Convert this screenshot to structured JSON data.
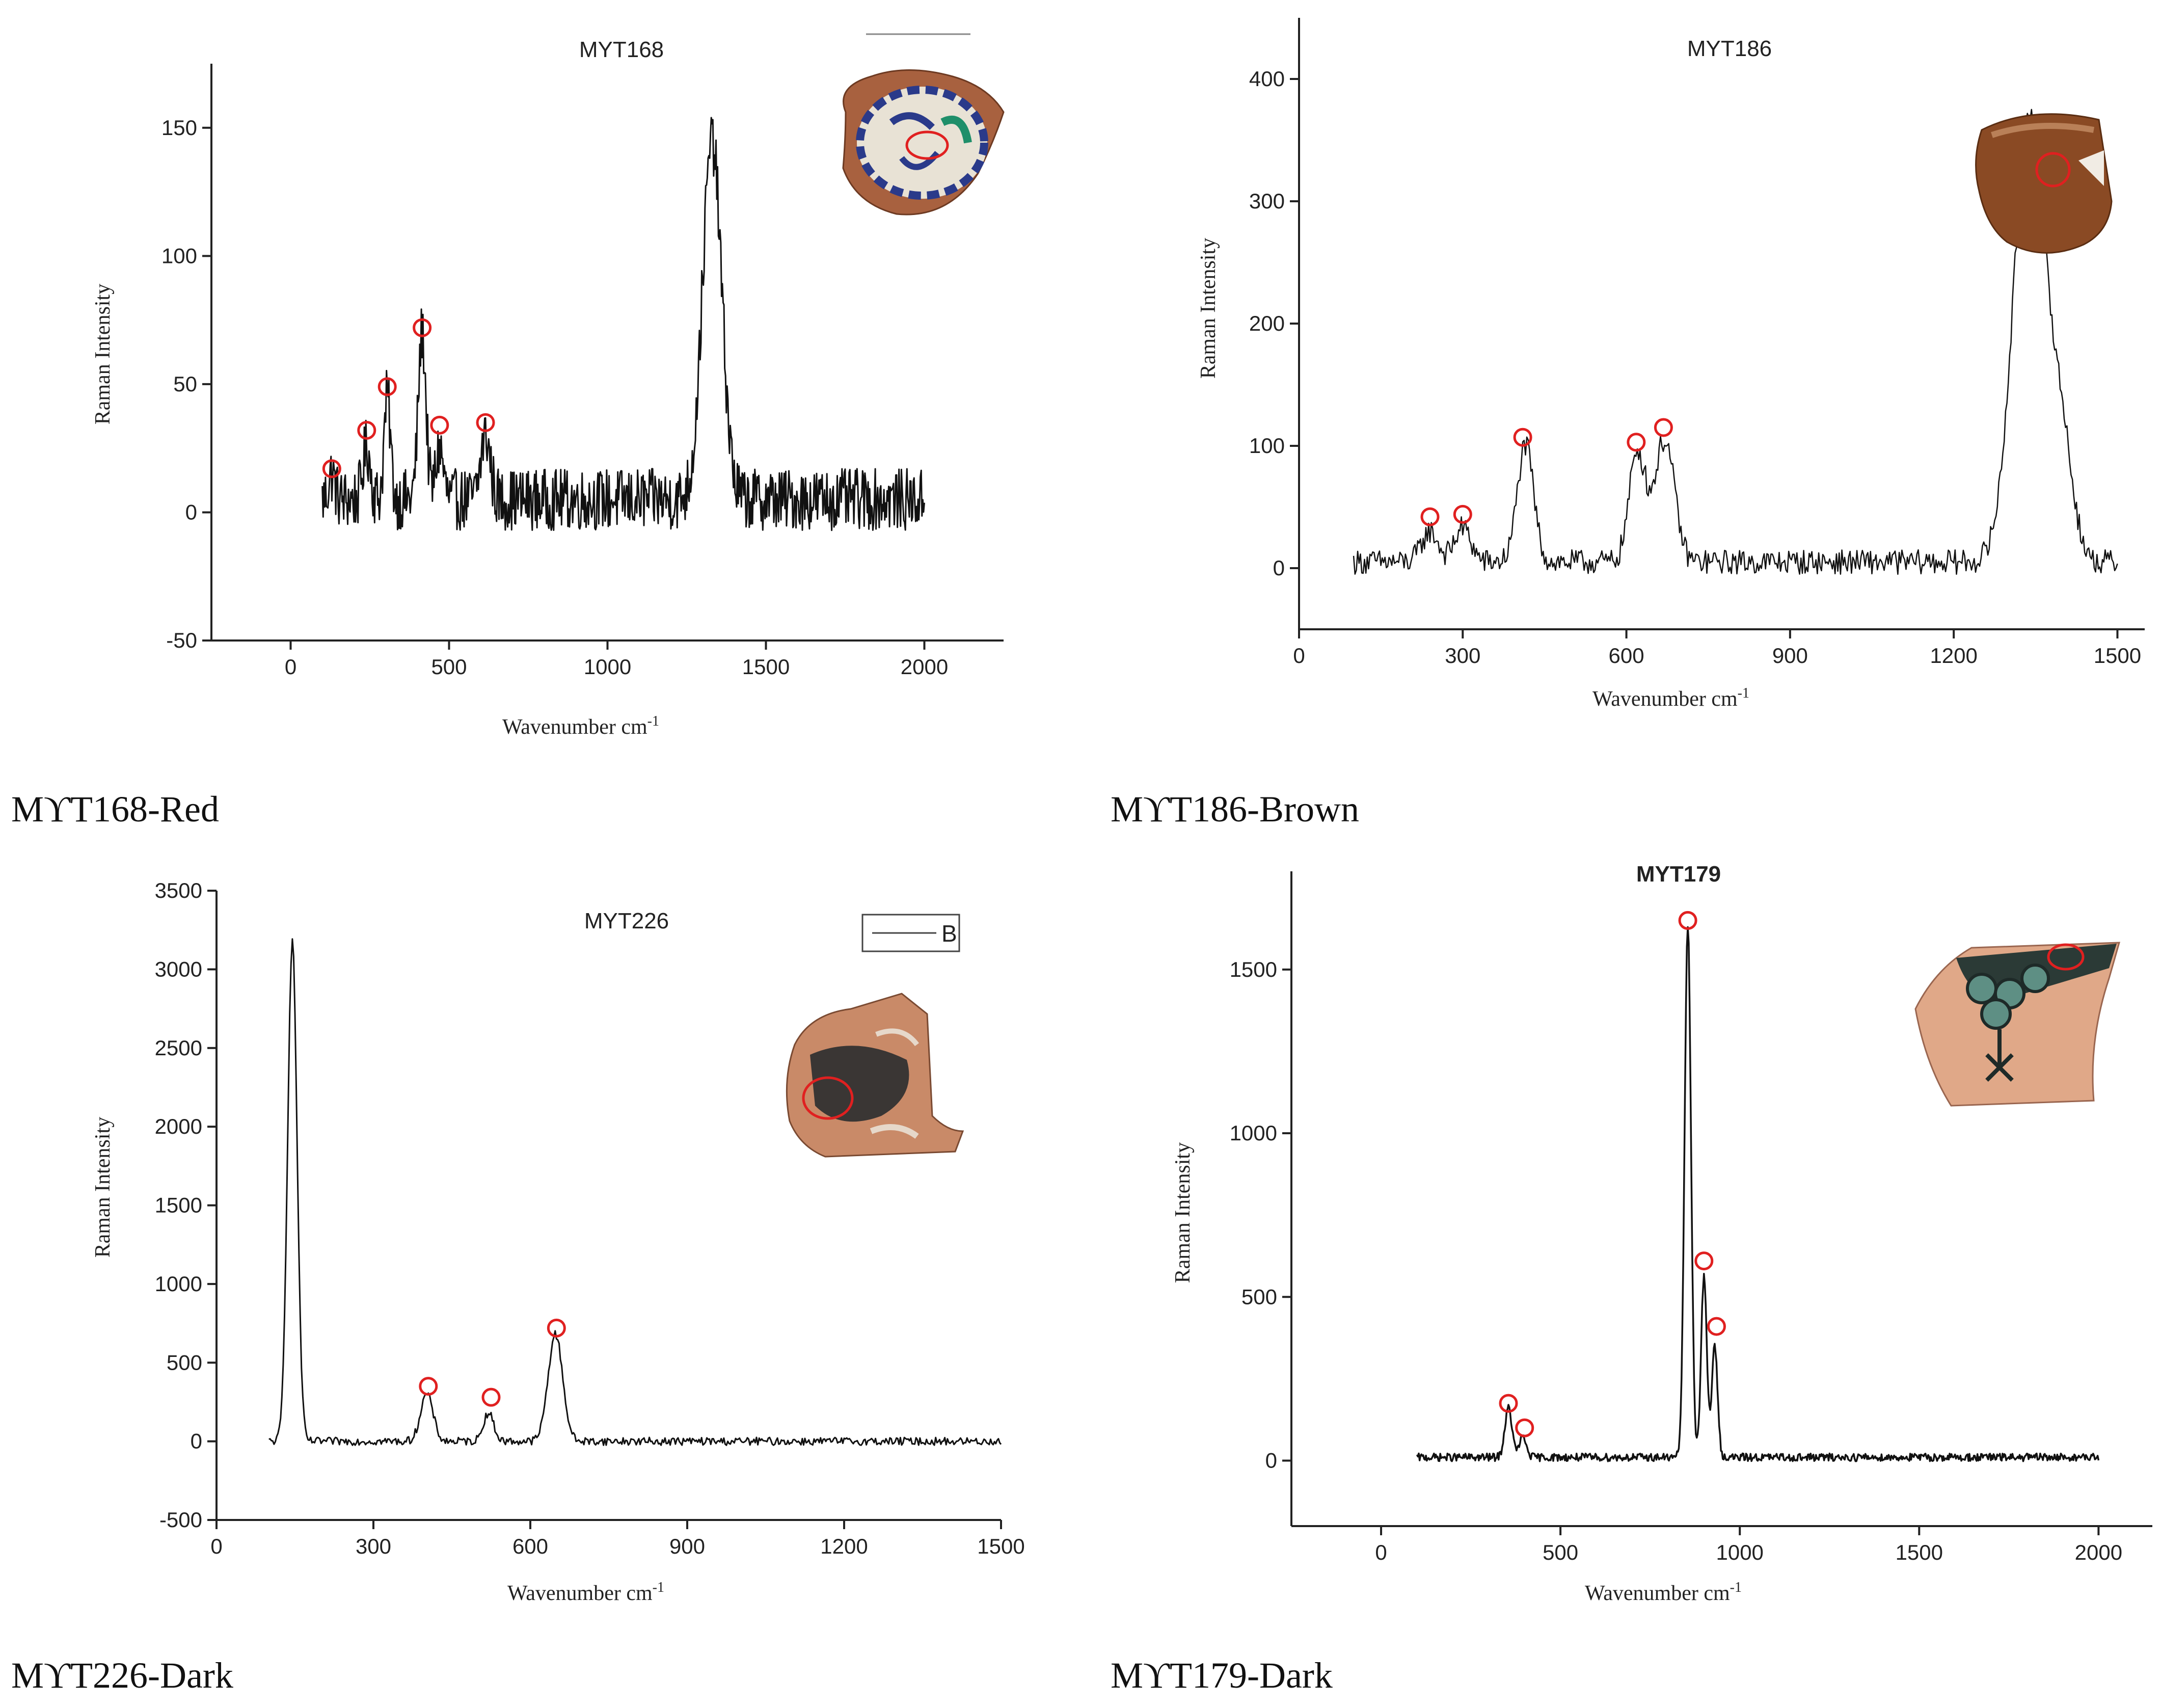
{
  "figure": {
    "panels": [
      {
        "caption": "MϒT168-Red",
        "inset_label": "red-decorated ceramic sherd"
      },
      {
        "caption": "MϒT186-Brown",
        "inset_label": "brown glazed ceramic sherd"
      },
      {
        "caption": "MϒT226-Dark",
        "inset_label": "dark-painted ceramic sherd"
      },
      {
        "caption": "MϒT179-Dark",
        "inset_label": "dark-painted ceramic sherd"
      }
    ]
  },
  "colors": {
    "line": "#111111",
    "marker": "#e02020",
    "axis": "#222222"
  },
  "chart_data": [
    {
      "type": "line",
      "title": "MYT168",
      "xlabel": "Wavenumber cm",
      "xlabel_sup": "-1",
      "ylabel": "Raman Intensity",
      "xlim": [
        -250,
        2250
      ],
      "ylim": [
        -50,
        175
      ],
      "xticks": [
        0,
        500,
        1000,
        1500,
        2000
      ],
      "yticks": [
        -50,
        0,
        50,
        100,
        150
      ],
      "x_range": [
        100,
        2000
      ],
      "noise": 12,
      "baseline": 5,
      "peaks": [
        [
          130,
          10,
          10
        ],
        [
          240,
          20,
          12
        ],
        [
          305,
          40,
          10
        ],
        [
          415,
          65,
          12
        ],
        [
          470,
          20,
          12
        ],
        [
          615,
          25,
          15
        ],
        [
          1330,
          140,
          30
        ]
      ],
      "marked_peaks": [
        {
          "x": 130,
          "y": 17
        },
        {
          "x": 240,
          "y": 32
        },
        {
          "x": 305,
          "y": 49
        },
        {
          "x": 415,
          "y": 72
        },
        {
          "x": 470,
          "y": 34
        },
        {
          "x": 615,
          "y": 35
        }
      ],
      "legend": null
    },
    {
      "type": "line",
      "title": "MYT186",
      "xlabel": "Wavenumber cm",
      "xlabel_sup": "-1",
      "ylabel": "Raman Intensity",
      "xlim": [
        0,
        1550
      ],
      "ylim": [
        -50,
        450
      ],
      "xticks": [
        0,
        300,
        600,
        900,
        1200,
        1500
      ],
      "yticks": [
        0,
        100,
        200,
        300,
        400
      ],
      "x_range": [
        100,
        1500
      ],
      "noise": 10,
      "baseline": 5,
      "peaks": [
        [
          240,
          25,
          15
        ],
        [
          300,
          28,
          15
        ],
        [
          415,
          95,
          15
        ],
        [
          620,
          90,
          15
        ],
        [
          670,
          100,
          18
        ],
        [
          1340,
          370,
          30
        ],
        [
          1400,
          80,
          20
        ]
      ],
      "marked_peaks": [
        {
          "x": 240,
          "y": 42
        },
        {
          "x": 300,
          "y": 44
        },
        {
          "x": 410,
          "y": 107
        },
        {
          "x": 618,
          "y": 103
        },
        {
          "x": 668,
          "y": 115
        }
      ],
      "legend": null
    },
    {
      "type": "line",
      "title": "MYT226",
      "xlabel": "Wavenumber cm",
      "xlabel_sup": "-1",
      "ylabel": "Raman Intensity",
      "xlim": [
        0,
        1500
      ],
      "ylim": [
        -500,
        3500
      ],
      "xticks": [
        0,
        300,
        600,
        900,
        1200,
        1500
      ],
      "yticks": [
        -500,
        0,
        500,
        1000,
        1500,
        2000,
        2500,
        3000,
        3500
      ],
      "x_range": [
        100,
        1500
      ],
      "noise": 25,
      "baseline": 0,
      "peaks": [
        [
          145,
          3180,
          9
        ],
        [
          402,
          300,
          12
        ],
        [
          520,
          180,
          10
        ],
        [
          648,
          680,
          14
        ]
      ],
      "marked_peaks": [
        {
          "x": 405,
          "y": 350
        },
        {
          "x": 525,
          "y": 280
        },
        {
          "x": 650,
          "y": 720
        }
      ],
      "legend": "B"
    },
    {
      "type": "line",
      "title": "MYT179",
      "xlabel": "Wavenumber cm",
      "xlabel_sup": "-1",
      "ylabel": "Raman Intensity",
      "xlim": [
        -250,
        2150
      ],
      "ylim": [
        -200,
        1800
      ],
      "xticks": [
        0,
        500,
        1000,
        1500,
        2000
      ],
      "yticks": [
        0,
        500,
        1000,
        1500
      ],
      "x_range": [
        100,
        2000
      ],
      "noise": 12,
      "baseline": 10,
      "peaks": [
        [
          355,
          150,
          10
        ],
        [
          395,
          60,
          10
        ],
        [
          855,
          1620,
          9
        ],
        [
          900,
          550,
          8
        ],
        [
          930,
          340,
          8
        ]
      ],
      "marked_peaks": [
        {
          "x": 355,
          "y": 175
        },
        {
          "x": 400,
          "y": 100
        },
        {
          "x": 855,
          "y": 1650
        },
        {
          "x": 900,
          "y": 610
        },
        {
          "x": 935,
          "y": 410
        }
      ],
      "legend": null
    }
  ]
}
